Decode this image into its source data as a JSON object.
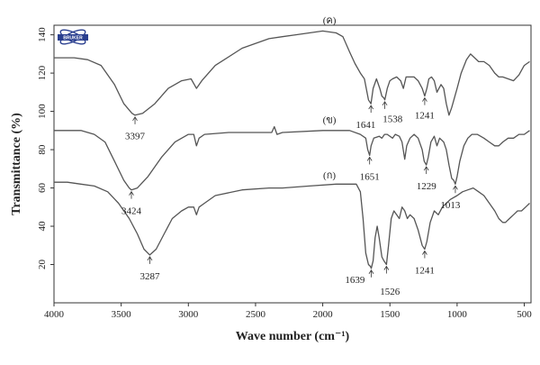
{
  "chart_data": {
    "type": "line",
    "xlabel": "Wave number (cm⁻¹)",
    "ylabel": "Transmittance (%)",
    "xlim": [
      4000,
      450
    ],
    "ylim": [
      0,
      145
    ],
    "x_ticks": [
      4000,
      3500,
      3000,
      2500,
      2000,
      1500,
      1000,
      500
    ],
    "x_tick_labels": [
      "4000",
      "3500",
      "3000",
      "2500",
      "2000",
      "1500",
      "1000",
      "500"
    ],
    "y_ticks": [
      20,
      40,
      60,
      80,
      100,
      120,
      140
    ],
    "y_tick_labels": [
      "20",
      "40",
      "60",
      "80",
      "100",
      "120",
      "140"
    ],
    "logo_text": "BRUKER",
    "series": [
      {
        "name": "(ค)",
        "color": "#555555",
        "points": [
          [
            4000,
            128
          ],
          [
            3850,
            128
          ],
          [
            3750,
            127
          ],
          [
            3650,
            124
          ],
          [
            3550,
            114
          ],
          [
            3480,
            104
          ],
          [
            3420,
            99
          ],
          [
            3397,
            98
          ],
          [
            3340,
            99
          ],
          [
            3250,
            104
          ],
          [
            3150,
            112
          ],
          [
            3050,
            116
          ],
          [
            2980,
            117
          ],
          [
            2940,
            112
          ],
          [
            2900,
            116
          ],
          [
            2800,
            124
          ],
          [
            2600,
            133
          ],
          [
            2400,
            138
          ],
          [
            2300,
            139
          ],
          [
            2200,
            140
          ],
          [
            2100,
            141
          ],
          [
            2000,
            142
          ],
          [
            1900,
            141
          ],
          [
            1850,
            139
          ],
          [
            1800,
            131
          ],
          [
            1760,
            125
          ],
          [
            1720,
            120
          ],
          [
            1690,
            117
          ],
          [
            1660,
            106
          ],
          [
            1641,
            104
          ],
          [
            1625,
            112
          ],
          [
            1600,
            117
          ],
          [
            1575,
            112
          ],
          [
            1560,
            108
          ],
          [
            1545,
            107
          ],
          [
            1538,
            106
          ],
          [
            1520,
            112
          ],
          [
            1500,
            116
          ],
          [
            1480,
            117
          ],
          [
            1450,
            118
          ],
          [
            1420,
            116
          ],
          [
            1400,
            112
          ],
          [
            1380,
            118
          ],
          [
            1360,
            118
          ],
          [
            1320,
            118
          ],
          [
            1290,
            116
          ],
          [
            1260,
            112
          ],
          [
            1241,
            108
          ],
          [
            1225,
            112
          ],
          [
            1210,
            117
          ],
          [
            1190,
            118
          ],
          [
            1170,
            116
          ],
          [
            1150,
            110
          ],
          [
            1120,
            114
          ],
          [
            1100,
            112
          ],
          [
            1080,
            104
          ],
          [
            1060,
            98
          ],
          [
            1040,
            102
          ],
          [
            1000,
            112
          ],
          [
            970,
            120
          ],
          [
            930,
            127
          ],
          [
            900,
            130
          ],
          [
            870,
            128
          ],
          [
            840,
            126
          ],
          [
            800,
            126
          ],
          [
            760,
            124
          ],
          [
            720,
            120
          ],
          [
            690,
            118
          ],
          [
            660,
            118
          ],
          [
            620,
            117
          ],
          [
            580,
            116
          ],
          [
            540,
            119
          ],
          [
            500,
            124
          ],
          [
            460,
            126
          ]
        ]
      },
      {
        "name": "(ข)",
        "color": "#555555",
        "points": [
          [
            4000,
            90
          ],
          [
            3800,
            90
          ],
          [
            3700,
            88
          ],
          [
            3620,
            84
          ],
          [
            3550,
            74
          ],
          [
            3480,
            64
          ],
          [
            3440,
            60
          ],
          [
            3424,
            59
          ],
          [
            3380,
            60
          ],
          [
            3300,
            66
          ],
          [
            3200,
            76
          ],
          [
            3100,
            84
          ],
          [
            3000,
            88
          ],
          [
            2960,
            88
          ],
          [
            2940,
            82
          ],
          [
            2920,
            86
          ],
          [
            2880,
            88
          ],
          [
            2700,
            89
          ],
          [
            2500,
            89
          ],
          [
            2380,
            89
          ],
          [
            2360,
            92
          ],
          [
            2340,
            88
          ],
          [
            2300,
            89
          ],
          [
            2000,
            90
          ],
          [
            1800,
            90
          ],
          [
            1720,
            88
          ],
          [
            1680,
            86
          ],
          [
            1665,
            80
          ],
          [
            1651,
            77
          ],
          [
            1640,
            82
          ],
          [
            1620,
            86
          ],
          [
            1580,
            87
          ],
          [
            1560,
            86
          ],
          [
            1540,
            88
          ],
          [
            1520,
            88
          ],
          [
            1480,
            86
          ],
          [
            1460,
            88
          ],
          [
            1430,
            87
          ],
          [
            1410,
            84
          ],
          [
            1390,
            75
          ],
          [
            1375,
            82
          ],
          [
            1350,
            86
          ],
          [
            1320,
            88
          ],
          [
            1290,
            86
          ],
          [
            1260,
            80
          ],
          [
            1245,
            74
          ],
          [
            1229,
            72
          ],
          [
            1215,
            76
          ],
          [
            1195,
            84
          ],
          [
            1170,
            87
          ],
          [
            1150,
            82
          ],
          [
            1130,
            86
          ],
          [
            1100,
            84
          ],
          [
            1080,
            80
          ],
          [
            1060,
            72
          ],
          [
            1040,
            65
          ],
          [
            1025,
            64
          ],
          [
            1013,
            62
          ],
          [
            1000,
            66
          ],
          [
            980,
            74
          ],
          [
            950,
            82
          ],
          [
            920,
            86
          ],
          [
            890,
            88
          ],
          [
            850,
            88
          ],
          [
            800,
            86
          ],
          [
            760,
            84
          ],
          [
            720,
            82
          ],
          [
            690,
            82
          ],
          [
            660,
            84
          ],
          [
            620,
            86
          ],
          [
            580,
            86
          ],
          [
            540,
            88
          ],
          [
            500,
            88
          ],
          [
            460,
            90
          ]
        ]
      },
      {
        "name": "(ก)",
        "color": "#555555",
        "points": [
          [
            4000,
            63
          ],
          [
            3900,
            63
          ],
          [
            3800,
            62
          ],
          [
            3700,
            61
          ],
          [
            3600,
            58
          ],
          [
            3520,
            52
          ],
          [
            3440,
            44
          ],
          [
            3380,
            36
          ],
          [
            3330,
            28
          ],
          [
            3287,
            25
          ],
          [
            3240,
            28
          ],
          [
            3180,
            36
          ],
          [
            3120,
            44
          ],
          [
            3050,
            48
          ],
          [
            3000,
            50
          ],
          [
            2960,
            50
          ],
          [
            2940,
            46
          ],
          [
            2920,
            50
          ],
          [
            2880,
            52
          ],
          [
            2800,
            56
          ],
          [
            2600,
            59
          ],
          [
            2400,
            60
          ],
          [
            2300,
            60
          ],
          [
            2100,
            61
          ],
          [
            1900,
            62
          ],
          [
            1800,
            62
          ],
          [
            1750,
            62
          ],
          [
            1720,
            58
          ],
          [
            1700,
            44
          ],
          [
            1680,
            26
          ],
          [
            1660,
            20
          ],
          [
            1645,
            19
          ],
          [
            1639,
            18
          ],
          [
            1625,
            22
          ],
          [
            1610,
            34
          ],
          [
            1595,
            40
          ],
          [
            1580,
            34
          ],
          [
            1560,
            24
          ],
          [
            1545,
            22
          ],
          [
            1526,
            20
          ],
          [
            1510,
            30
          ],
          [
            1490,
            44
          ],
          [
            1470,
            48
          ],
          [
            1450,
            46
          ],
          [
            1430,
            44
          ],
          [
            1410,
            50
          ],
          [
            1390,
            48
          ],
          [
            1370,
            44
          ],
          [
            1350,
            46
          ],
          [
            1320,
            44
          ],
          [
            1290,
            38
          ],
          [
            1260,
            30
          ],
          [
            1241,
            28
          ],
          [
            1225,
            32
          ],
          [
            1200,
            42
          ],
          [
            1170,
            48
          ],
          [
            1140,
            46
          ],
          [
            1110,
            50
          ],
          [
            1080,
            52
          ],
          [
            1050,
            54
          ],
          [
            1000,
            56
          ],
          [
            960,
            58
          ],
          [
            920,
            59
          ],
          [
            880,
            60
          ],
          [
            840,
            58
          ],
          [
            800,
            56
          ],
          [
            760,
            52
          ],
          [
            720,
            48
          ],
          [
            690,
            44
          ],
          [
            660,
            42
          ],
          [
            640,
            42
          ],
          [
            610,
            44
          ],
          [
            580,
            46
          ],
          [
            550,
            48
          ],
          [
            520,
            48
          ],
          [
            490,
            50
          ],
          [
            460,
            52
          ]
        ]
      }
    ],
    "series_labels": [
      {
        "text": "(ค)",
        "x": 1950,
        "y": 146
      },
      {
        "text": "(ข)",
        "x": 1950,
        "y": 94
      },
      {
        "text": "(ก)",
        "x": 1950,
        "y": 65
      }
    ],
    "annotations": [
      {
        "text": "3397",
        "x": 3397,
        "y": 98,
        "label_x": 3397,
        "label_y": 91
      },
      {
        "text": "1641",
        "x": 1641,
        "y": 104,
        "label_x": 1680,
        "label_y": 97
      },
      {
        "text": "1538",
        "x": 1538,
        "y": 106,
        "label_x": 1480,
        "label_y": 100
      },
      {
        "text": "1241",
        "x": 1241,
        "y": 108,
        "label_x": 1241,
        "label_y": 102
      },
      {
        "text": "3424",
        "x": 3424,
        "y": 59,
        "label_x": 3424,
        "label_y": 52
      },
      {
        "text": "1651",
        "x": 1651,
        "y": 77,
        "label_x": 1651,
        "label_y": 70
      },
      {
        "text": "1229",
        "x": 1229,
        "y": 72,
        "label_x": 1229,
        "label_y": 65
      },
      {
        "text": "1013",
        "x": 1013,
        "y": 62,
        "label_x": 1050,
        "label_y": 55
      },
      {
        "text": "3287",
        "x": 3287,
        "y": 25,
        "label_x": 3287,
        "label_y": 18
      },
      {
        "text": "1639",
        "x": 1639,
        "y": 18,
        "label_x": 1760,
        "label_y": 16
      },
      {
        "text": "1526",
        "x": 1526,
        "y": 20,
        "label_x": 1500,
        "label_y": 10
      },
      {
        "text": "1241",
        "x": 1241,
        "y": 28,
        "label_x": 1241,
        "label_y": 21
      }
    ]
  }
}
